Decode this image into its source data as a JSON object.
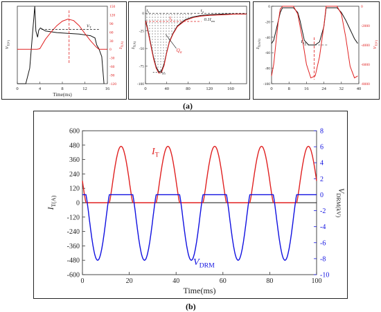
{
  "captions": {
    "a": "(a)",
    "b": "(b)"
  },
  "colors": {
    "black": "#111111",
    "red": "#e02020",
    "blue": "#1010e0",
    "grid": "#c8c8c8"
  },
  "chart_data": [
    {
      "type": "line",
      "id": "a1",
      "xlabel": "Time(ms)",
      "ylabel_left": "VT(V)",
      "ylabel_right": "IT(A)",
      "xlim": [
        0,
        16
      ],
      "xticks": [
        0,
        4,
        8,
        12,
        16
      ],
      "ylim_left": [
        0,
        10
      ],
      "ylim_right": [
        -120,
        150
      ],
      "yticks_right": [
        -120,
        -90,
        -60,
        -30,
        0,
        30,
        60,
        90,
        120,
        150
      ],
      "annotations": [
        "VT"
      ],
      "series": [
        {
          "axis": "left",
          "color": "#111111",
          "x": [
            0,
            1.5,
            2.2,
            3.1,
            3.3,
            3.6,
            3.8,
            4.1,
            5,
            7,
            9,
            11,
            13,
            13.8,
            14.1,
            14.5,
            15,
            15.4
          ],
          "y": [
            0,
            0,
            2.0,
            10,
            6.8,
            6.0,
            6.9,
            7.2,
            6.8,
            6.6,
            6.5,
            6.4,
            6.2,
            5.9,
            5.0,
            4.5,
            3.5,
            0
          ]
        },
        {
          "axis": "right",
          "color": "#e02020",
          "x": [
            0,
            3.5,
            4,
            5,
            6,
            7,
            8,
            9,
            10,
            11,
            12,
            13,
            14,
            14.5,
            15,
            16
          ],
          "y": [
            0,
            0,
            2,
            35,
            60,
            82,
            98,
            105,
            100,
            82,
            55,
            30,
            8,
            0,
            0,
            0
          ]
        }
      ]
    },
    {
      "type": "line",
      "id": "a2",
      "xlabel": "",
      "ylabel": "IT(A)",
      "xlim": [
        0,
        190
      ],
      "xticks": [
        0,
        40,
        80,
        120,
        160
      ],
      "ylim": [
        -100,
        10
      ],
      "yticks": [
        -100,
        -75,
        -50,
        -25,
        0
      ],
      "annotations": [
        "ts",
        "t1",
        "t2",
        "Qrr",
        "Irm",
        "0.1Irm"
      ],
      "series": [
        {
          "color": "#111111",
          "x": [
            0,
            3,
            8,
            15,
            20,
            25,
            30,
            35,
            40,
            45,
            52,
            60,
            75,
            90,
            105,
            120,
            150,
            170,
            190
          ],
          "y": [
            -10,
            -18,
            -36,
            -62,
            -76,
            -83,
            -82,
            -72,
            -55,
            -40,
            -28,
            -18,
            -9,
            -5,
            -3,
            -2,
            -1,
            -1,
            -1
          ]
        },
        {
          "color": "#e02020",
          "x": [
            0,
            3,
            8,
            15,
            20,
            25,
            30,
            35,
            40,
            45,
            52,
            60,
            75,
            90,
            105,
            120,
            150,
            170,
            190
          ],
          "y": [
            -12,
            -20,
            -38,
            -64,
            -78,
            -85,
            -84,
            -74,
            -56,
            -41,
            -29,
            -19,
            -10,
            -6,
            -4,
            -3,
            -2,
            -1,
            -1
          ]
        }
      ]
    },
    {
      "type": "line",
      "id": "a3",
      "xlabel": "",
      "ylabel_left": "IT(mA)",
      "ylabel_right": "VT(V)",
      "xlim": [
        0,
        40
      ],
      "xticks": [
        0,
        8,
        16,
        24,
        32,
        40
      ],
      "ylim_left": [
        -100,
        0
      ],
      "yticks_left": [
        -100,
        -80,
        -60,
        -40,
        -20,
        0
      ],
      "ylim_right": [
        -8000,
        0
      ],
      "yticks_right": [
        -8000,
        -6000,
        -4000,
        -2000,
        0
      ],
      "annotations": [
        "Irrd"
      ],
      "series": [
        {
          "axis": "left",
          "color": "#111111",
          "x": [
            0,
            1,
            2,
            4,
            5,
            10,
            12,
            13,
            15,
            17,
            20,
            22,
            24,
            25,
            30,
            32,
            34,
            36,
            38,
            39.5
          ],
          "y": [
            -48,
            -44,
            -32,
            -8,
            -2,
            -2,
            -8,
            -18,
            -44,
            -50,
            -50,
            -46,
            -26,
            -2,
            -2,
            -8,
            -18,
            -30,
            -42,
            -48
          ]
        },
        {
          "axis": "right",
          "color": "#e02020",
          "x": [
            0,
            1,
            2,
            3,
            4,
            5,
            10,
            12,
            14,
            16,
            18,
            20,
            22,
            24,
            25,
            30,
            32,
            34,
            36,
            38,
            39.5
          ],
          "y": [
            -7200,
            -6000,
            -3800,
            -1700,
            -300,
            0,
            0,
            -800,
            -3200,
            -6000,
            -7400,
            -7200,
            -5200,
            -2000,
            0,
            0,
            -800,
            -3200,
            -6200,
            -7400,
            -7200
          ]
        }
      ]
    },
    {
      "type": "line",
      "id": "b",
      "xlabel": "Time(ms)",
      "ylabel_left": "IT(A)",
      "ylabel_right": "VDRM(kV)",
      "xlim": [
        0,
        100
      ],
      "xticks": [
        0,
        20,
        40,
        60,
        80,
        100
      ],
      "ylim_left": [
        -600,
        600
      ],
      "yticks_left": [
        -600,
        -480,
        -360,
        -240,
        -120,
        0,
        120,
        240,
        360,
        480,
        600
      ],
      "ylim_right": [
        -10,
        8
      ],
      "yticks_right": [
        -10,
        -8,
        -6,
        -4,
        -2,
        0,
        2,
        4,
        6,
        8
      ],
      "series": [
        {
          "name": "IT",
          "axis": "left",
          "color": "#e02020",
          "period": 20,
          "phase": 11.5,
          "amplitude": 470,
          "half_width": 10
        },
        {
          "name": "VDRM",
          "axis": "right",
          "color": "#1010e0",
          "period": 20,
          "phase": 1.5,
          "amplitude": -8.2,
          "half_width": 10
        }
      ],
      "labels": {
        "it": "IT",
        "vdrm": "VDRM"
      }
    }
  ]
}
